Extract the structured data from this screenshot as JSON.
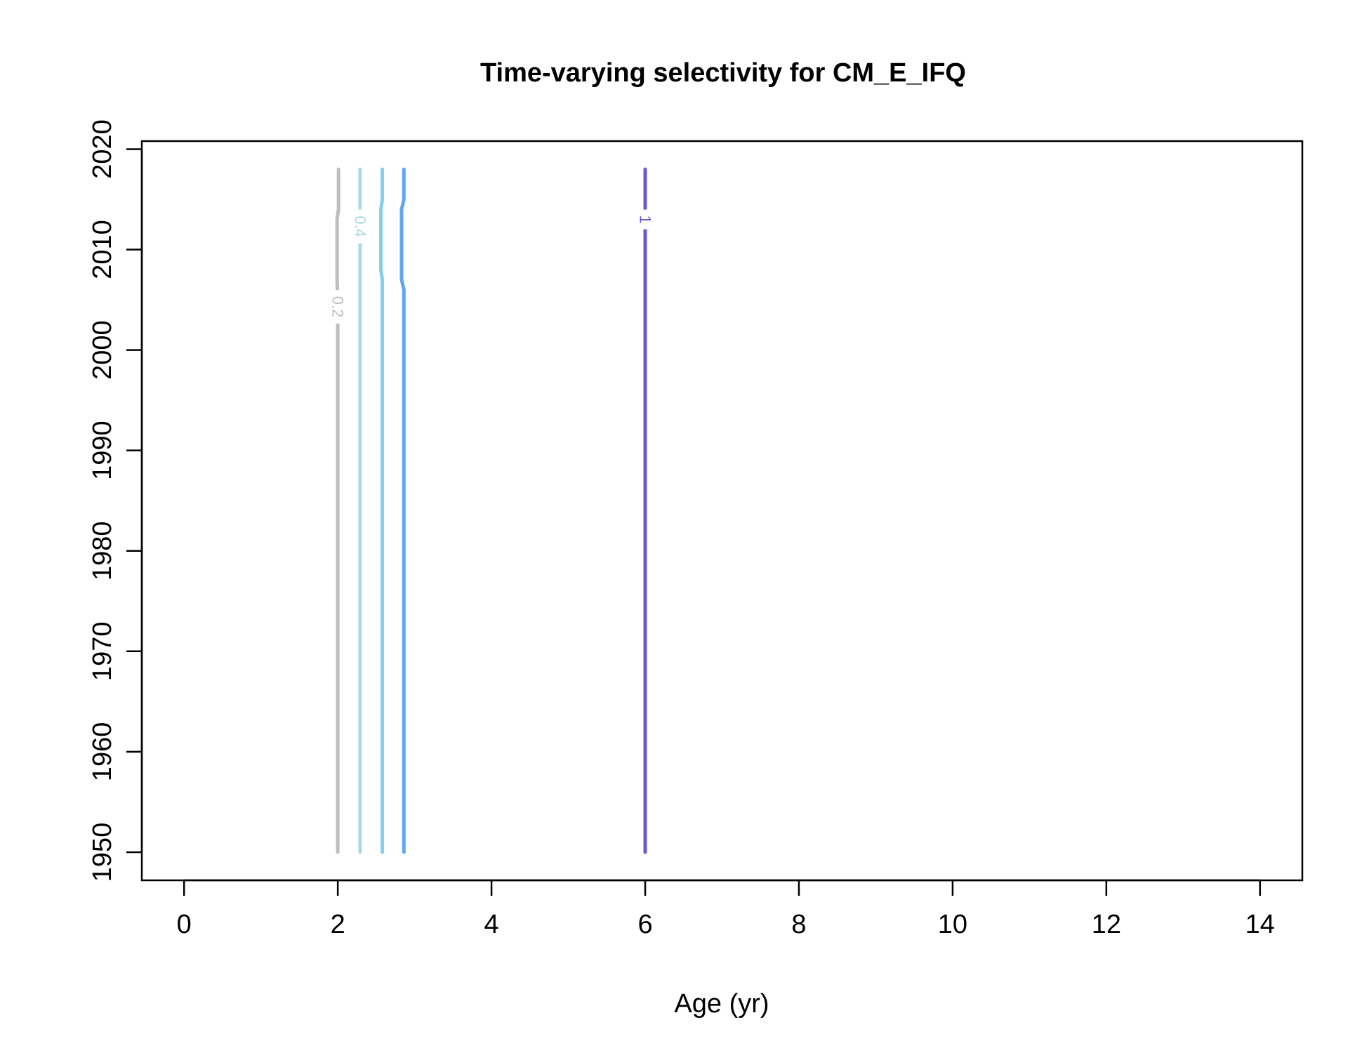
{
  "chart_data": {
    "type": "contour",
    "title": "Time-varying selectivity for CM_E_IFQ",
    "xlabel": "Age (yr)",
    "ylabel": "",
    "xlim": [
      -0.55,
      14.55
    ],
    "ylim": [
      1947.2,
      2020.8
    ],
    "xticks": [
      0,
      2,
      4,
      6,
      8,
      10,
      12,
      14
    ],
    "yticks": [
      1950,
      1960,
      1970,
      1980,
      1990,
      2000,
      2010,
      2020
    ],
    "grid": false,
    "legend": "none",
    "series": [
      {
        "level_label": "0.2",
        "color": "#bebebe",
        "path": [
          [
            2.0,
            1950
          ],
          [
            2.0,
            2005
          ],
          [
            1.99,
            2007
          ],
          [
            1.99,
            2013
          ],
          [
            2.01,
            2014
          ],
          [
            2.01,
            2018
          ]
        ],
        "label_at": [
          2.0,
          2004.3
        ]
      },
      {
        "level_label": "0.4",
        "color": "#add8e6",
        "path": [
          [
            2.29,
            1950
          ],
          [
            2.29,
            2018
          ]
        ],
        "label_at": [
          2.29,
          2012.3
        ]
      },
      {
        "level_label": "",
        "color": "#87ceeb",
        "path": [
          [
            2.58,
            1950
          ],
          [
            2.58,
            2007
          ],
          [
            2.56,
            2008
          ],
          [
            2.56,
            2014
          ],
          [
            2.58,
            2015
          ],
          [
            2.58,
            2018
          ]
        ],
        "label_at": null
      },
      {
        "level_label": "",
        "color": "#63a6f0",
        "path": [
          [
            2.86,
            1950
          ],
          [
            2.86,
            2006
          ],
          [
            2.83,
            2007
          ],
          [
            2.83,
            2014
          ],
          [
            2.86,
            2015
          ],
          [
            2.86,
            2018
          ]
        ],
        "label_at": null
      },
      {
        "level_label": "1",
        "color": "#6a5acd",
        "path": [
          [
            6.0,
            1950
          ],
          [
            6.0,
            2018
          ]
        ],
        "label_at": [
          6.0,
          2013.0
        ]
      }
    ]
  }
}
